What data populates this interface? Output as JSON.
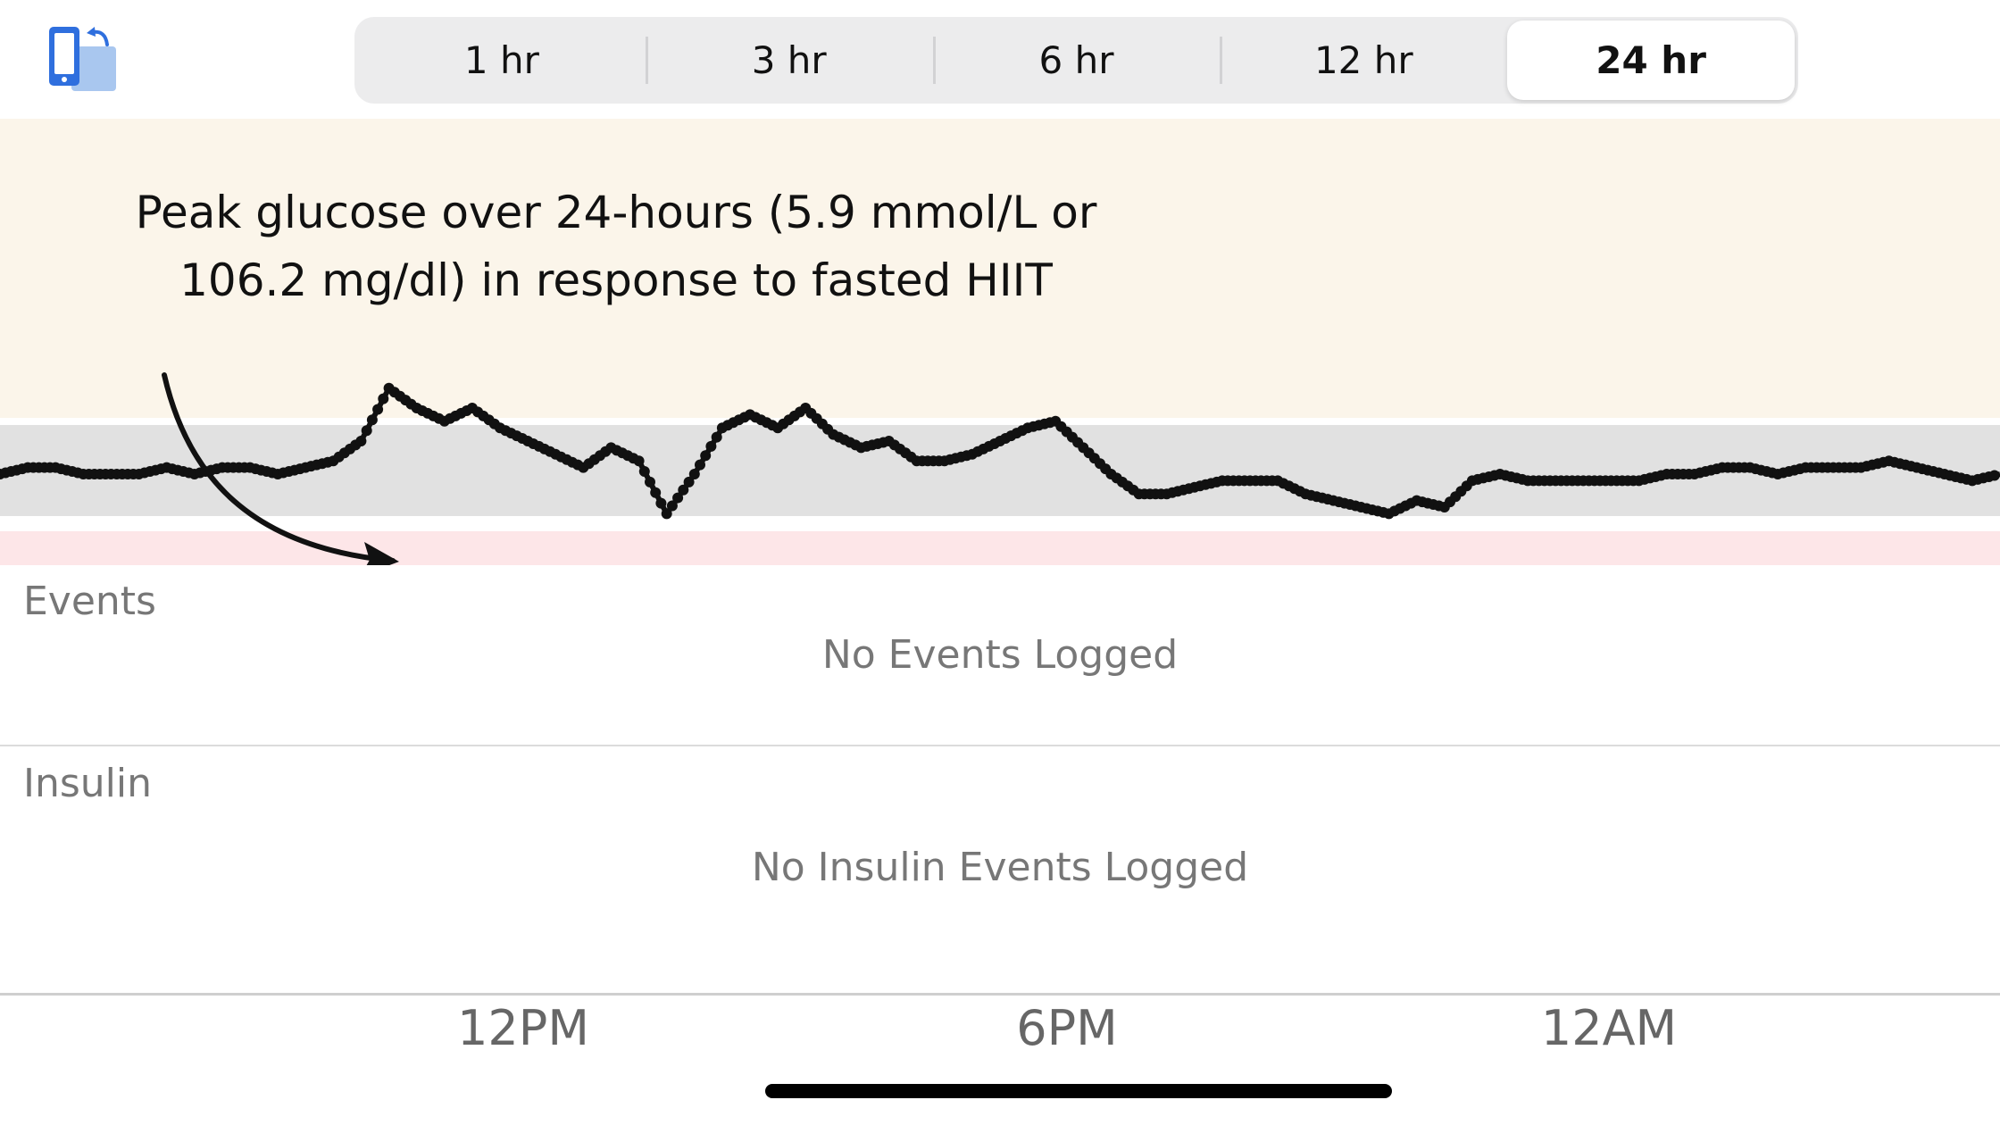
{
  "toolbar": {
    "rotate_icon": "rotate-device-icon",
    "accent_color": "#2f6fde",
    "time_ranges": [
      "1 hr",
      "3 hr",
      "6 hr",
      "12 hr",
      "24 hr"
    ],
    "selected_range": "24 hr"
  },
  "annotation": {
    "line1": "Peak glucose over 24-hours (5.9 mmol/L or",
    "line2": "106.2 mg/dl) in response to fasted HIIT"
  },
  "chart_data": {
    "type": "scatter",
    "series": [
      {
        "values": [
          4.6,
          4.7,
          4.7,
          4.6,
          4.6,
          4.6,
          4.7,
          4.6,
          4.7,
          4.7,
          4.6,
          4.7,
          4.8,
          5.1,
          5.9,
          5.6,
          5.4,
          5.6,
          5.3,
          5.1,
          4.9,
          4.7,
          5.0,
          4.8,
          4.0,
          4.6,
          5.3,
          5.5,
          5.3,
          5.6,
          5.2,
          5.0,
          5.1,
          4.8,
          4.8,
          4.9,
          5.1,
          5.3,
          5.4,
          5.0,
          4.6,
          4.3,
          4.3,
          4.4,
          4.5,
          4.5,
          4.5,
          4.3,
          4.2,
          4.1,
          4.0,
          4.2,
          4.1,
          4.5,
          4.6,
          4.5,
          4.5,
          4.5,
          4.5,
          4.5,
          4.6,
          4.6,
          4.7,
          4.7,
          4.6,
          4.7,
          4.7,
          4.7,
          4.8,
          4.7,
          4.6,
          4.5,
          4.6
        ]
      }
    ],
    "bands": {
      "high": "#fbf5ea",
      "in_range": "#e1e1e1",
      "low": "#fde6e8"
    },
    "xlabels": [
      "12PM",
      "6PM",
      "12AM"
    ],
    "grid": false
  },
  "events": {
    "label": "Events",
    "empty_text": "No Events Logged"
  },
  "insulin": {
    "label": "Insulin",
    "empty_text": "No Insulin Events Logged"
  }
}
